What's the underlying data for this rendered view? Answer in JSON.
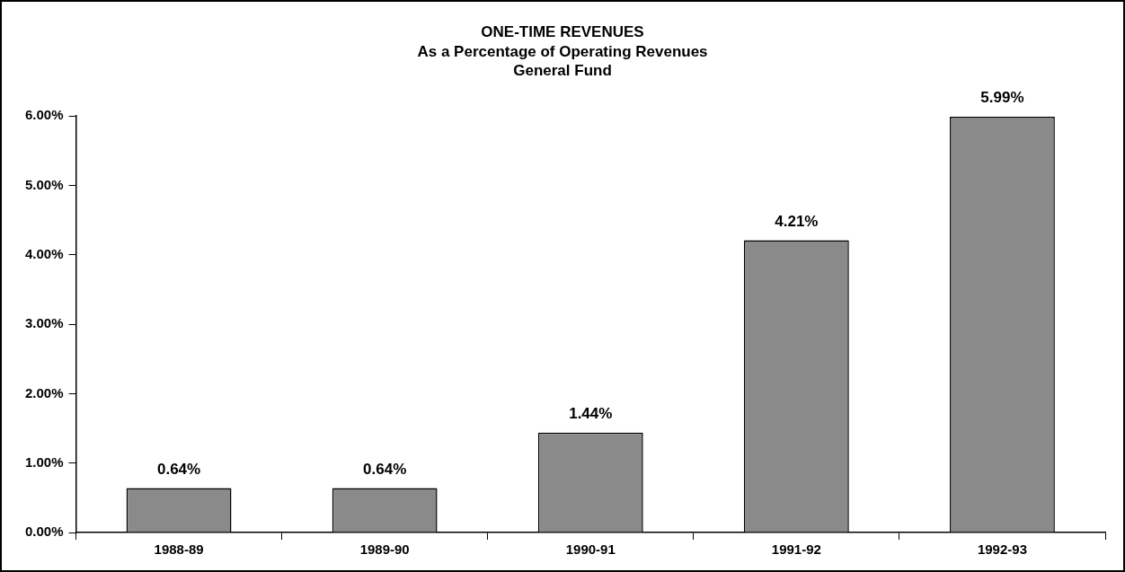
{
  "chart_data": {
    "type": "bar",
    "title": "ONE-TIME REVENUES",
    "subtitle": "As a Percentage of Operating Revenues\nGeneral Fund",
    "categories": [
      "1988-89",
      "1989-90",
      "1990-91",
      "1991-92",
      "1992-93"
    ],
    "values": [
      0.64,
      0.64,
      1.44,
      4.21,
      5.99
    ],
    "color": "#8a8a8a",
    "value_labels": [
      "0.64%",
      "0.64%",
      "1.44%",
      "4.21%",
      "5.99%"
    ],
    "ylim": [
      0,
      6
    ],
    "yticks": [
      {
        "value": 0,
        "label": "0.00%"
      },
      {
        "value": 1,
        "label": "1.00%"
      },
      {
        "value": 2,
        "label": "2.00%"
      },
      {
        "value": 3,
        "label": "3.00%"
      },
      {
        "value": 4,
        "label": "4.00%"
      },
      {
        "value": 5,
        "label": "5.00%"
      },
      {
        "value": 6,
        "label": "6.00%"
      }
    ],
    "grid": false,
    "legend": false
  }
}
